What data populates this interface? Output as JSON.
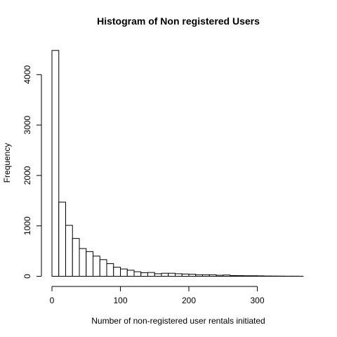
{
  "chart_data": {
    "type": "bar",
    "title": "Histogram of Non registered Users",
    "xlabel": "Number of non-registered user rentals initiated",
    "ylabel": "Frequency",
    "xlim": [
      0,
      367
    ],
    "ylim": [
      0,
      4500
    ],
    "x_ticks": [
      0,
      100,
      200,
      300
    ],
    "y_ticks": [
      0,
      1000,
      2000,
      3000,
      4000
    ],
    "bin_width": 10,
    "bins": [
      {
        "start": 0,
        "end": 10,
        "value": 4480
      },
      {
        "start": 10,
        "end": 20,
        "value": 1470
      },
      {
        "start": 20,
        "end": 30,
        "value": 1010
      },
      {
        "start": 30,
        "end": 40,
        "value": 750
      },
      {
        "start": 40,
        "end": 50,
        "value": 550
      },
      {
        "start": 50,
        "end": 60,
        "value": 490
      },
      {
        "start": 60,
        "end": 70,
        "value": 400
      },
      {
        "start": 70,
        "end": 80,
        "value": 330
      },
      {
        "start": 80,
        "end": 90,
        "value": 250
      },
      {
        "start": 90,
        "end": 100,
        "value": 180
      },
      {
        "start": 100,
        "end": 110,
        "value": 145
      },
      {
        "start": 110,
        "end": 120,
        "value": 120
      },
      {
        "start": 120,
        "end": 130,
        "value": 90
      },
      {
        "start": 130,
        "end": 140,
        "value": 70
      },
      {
        "start": 140,
        "end": 150,
        "value": 75
      },
      {
        "start": 150,
        "end": 160,
        "value": 50
      },
      {
        "start": 160,
        "end": 170,
        "value": 60
      },
      {
        "start": 170,
        "end": 180,
        "value": 60
      },
      {
        "start": 180,
        "end": 190,
        "value": 50
      },
      {
        "start": 190,
        "end": 200,
        "value": 45
      },
      {
        "start": 200,
        "end": 210,
        "value": 40
      },
      {
        "start": 210,
        "end": 220,
        "value": 30
      },
      {
        "start": 220,
        "end": 230,
        "value": 30
      },
      {
        "start": 230,
        "end": 240,
        "value": 30
      },
      {
        "start": 240,
        "end": 250,
        "value": 20
      },
      {
        "start": 250,
        "end": 260,
        "value": 25
      },
      {
        "start": 260,
        "end": 270,
        "value": 15
      },
      {
        "start": 270,
        "end": 280,
        "value": 12
      },
      {
        "start": 280,
        "end": 290,
        "value": 10
      },
      {
        "start": 290,
        "end": 300,
        "value": 10
      },
      {
        "start": 300,
        "end": 310,
        "value": 8
      },
      {
        "start": 310,
        "end": 320,
        "value": 5
      },
      {
        "start": 320,
        "end": 330,
        "value": 4
      },
      {
        "start": 330,
        "end": 340,
        "value": 3
      },
      {
        "start": 340,
        "end": 350,
        "value": 2
      },
      {
        "start": 350,
        "end": 360,
        "value": 2
      },
      {
        "start": 360,
        "end": 367,
        "value": 1
      }
    ]
  }
}
